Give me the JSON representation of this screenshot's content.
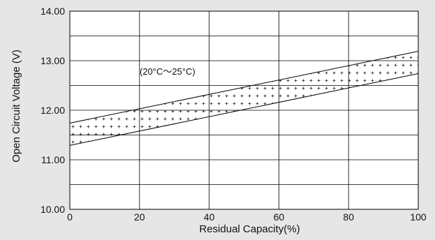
{
  "chart_data": {
    "type": "area",
    "xlabel": "Residual Capacity(%)",
    "ylabel": "Open Circuit Voltage (V)",
    "xlim": [
      0,
      100
    ],
    "ylim": [
      10.0,
      14.0
    ],
    "x_ticks": [
      0,
      20,
      40,
      60,
      80,
      100
    ],
    "y_ticks": [
      10.0,
      11.0,
      12.0,
      13.0,
      14.0
    ],
    "y_tick_labels": [
      "10.00",
      "11.00",
      "12.00",
      "13.00",
      "14.00"
    ],
    "grid": true,
    "annotation": "(20°C～25°C)",
    "band": {
      "upper": {
        "x": [
          0,
          100
        ],
        "y": [
          11.74,
          13.19
        ]
      },
      "lower": {
        "x": [
          0,
          100
        ],
        "y": [
          11.29,
          12.74
        ]
      }
    },
    "colors": {
      "background": "#e6e6e6",
      "plot_background": "#ffffff",
      "line": "#000000"
    }
  }
}
